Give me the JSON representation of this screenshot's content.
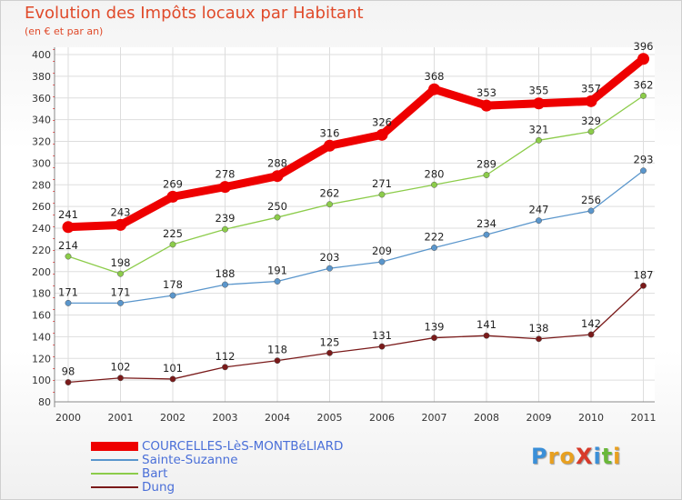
{
  "header": {
    "title": "Evolution des Impôts locaux par Habitant",
    "subtitle": "(en € et par an)"
  },
  "logo": {
    "text": "ProXiti",
    "letters": [
      {
        "ch": "P",
        "color": "#3a8fd8"
      },
      {
        "ch": "r",
        "color": "#e8a020"
      },
      {
        "ch": "o",
        "color": "#e8a020"
      },
      {
        "ch": "X",
        "color": "#d83a2a"
      },
      {
        "ch": "i",
        "color": "#3a8fd8"
      },
      {
        "ch": "t",
        "color": "#6ab83a"
      },
      {
        "ch": "i",
        "color": "#e8a020"
      }
    ]
  },
  "chart_data": {
    "type": "line",
    "title": "Evolution des Impôts locaux par Habitant",
    "subtitle": "(en € et par an)",
    "xlabel": "",
    "ylabel": "",
    "ylim": [
      80,
      400
    ],
    "yticks": [
      80,
      100,
      120,
      140,
      160,
      180,
      200,
      220,
      240,
      260,
      280,
      300,
      320,
      340,
      360,
      380,
      400
    ],
    "categories": [
      "2000",
      "2001",
      "2002",
      "2003",
      "2004",
      "2005",
      "2006",
      "2007",
      "2008",
      "2009",
      "2010",
      "2011"
    ],
    "grid": true,
    "legend_position": "bottom-left",
    "series": [
      {
        "name": "COURCELLES-LèS-MONTBéLIARD",
        "color": "#ee0000",
        "values": [
          241,
          243,
          269,
          278,
          288,
          316,
          326,
          368,
          353,
          355,
          357,
          396
        ]
      },
      {
        "name": "Sainte-Suzanne",
        "color": "#5a96cc",
        "values": [
          171,
          171,
          178,
          188,
          191,
          203,
          209,
          222,
          234,
          247,
          256,
          293
        ]
      },
      {
        "name": "Bart",
        "color": "#8ccc4a",
        "values": [
          214,
          198,
          225,
          239,
          250,
          262,
          271,
          280,
          289,
          321,
          329,
          362
        ]
      },
      {
        "name": "Dung",
        "color": "#7a1a1a",
        "values": [
          98,
          102,
          101,
          112,
          118,
          125,
          131,
          139,
          141,
          138,
          142,
          187
        ]
      }
    ]
  }
}
